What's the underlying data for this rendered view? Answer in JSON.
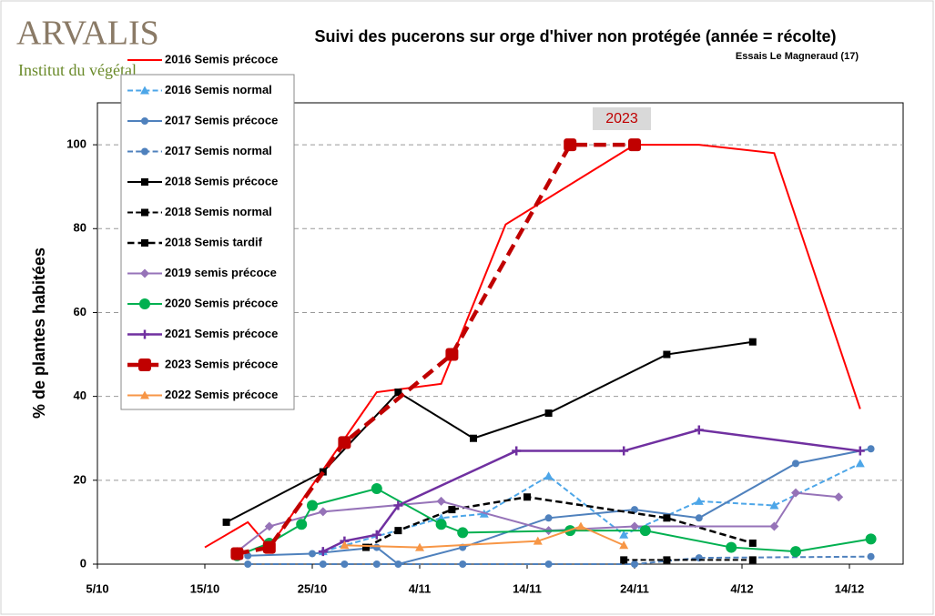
{
  "logo": {
    "name": "ARVALIS",
    "tagline": "Institut du végétal"
  },
  "chart_data": {
    "type": "line",
    "title": "Suivi des pucerons sur orge d'hiver non protégée (année = récolte)",
    "subtitle": "Essais Le Magneraud (17)",
    "y_label": "% de plantes habitées",
    "annotation": "2023",
    "xlim": [
      278,
      353
    ],
    "xticks": [
      {
        "value": 278,
        "label": "5/10"
      },
      {
        "value": 288,
        "label": "15/10"
      },
      {
        "value": 298,
        "label": "25/10"
      },
      {
        "value": 308,
        "label": "4/11"
      },
      {
        "value": 318,
        "label": "14/11"
      },
      {
        "value": 328,
        "label": "24/11"
      },
      {
        "value": 338,
        "label": "4/12"
      },
      {
        "value": 348,
        "label": "14/12"
      }
    ],
    "ylim": [
      0,
      110
    ],
    "yticks": [
      0,
      20,
      40,
      60,
      80,
      100
    ],
    "grid": true,
    "legend": "upper left",
    "series": [
      {
        "name": "2016 Semis précoce",
        "color": "#ff0000",
        "marker": "none",
        "dashed": false,
        "width": 2,
        "x": [
          288,
          292,
          294,
          304,
          310,
          316,
          328,
          334,
          341,
          349
        ],
        "values": [
          4,
          10,
          4,
          41,
          43,
          81,
          100,
          100,
          98,
          37
        ]
      },
      {
        "name": "2016 Semis normal",
        "color": "#4da6e8",
        "marker": "triangle",
        "dashed": true,
        "width": 2,
        "x": [
          299,
          310,
          314,
          320,
          327,
          334,
          341,
          349
        ],
        "values": [
          3,
          11,
          12,
          21,
          7,
          15,
          14,
          24
        ]
      },
      {
        "name": "2017 Semis précoce",
        "color": "#4f81bd",
        "marker": "circle",
        "dashed": false,
        "width": 2,
        "x": [
          292,
          298,
          304,
          306,
          312,
          320,
          328,
          334,
          343,
          350
        ],
        "values": [
          2,
          2.5,
          4,
          0,
          4,
          11,
          13,
          11,
          24,
          27.5
        ]
      },
      {
        "name": "2017 Semis normal",
        "color": "#4f81bd",
        "marker": "circle",
        "dashed": true,
        "width": 2,
        "x": [
          292,
          299,
          301,
          304,
          312,
          320,
          328,
          334,
          350
        ],
        "values": [
          0,
          0,
          0,
          0,
          0,
          0,
          0,
          1.5,
          1.8
        ]
      },
      {
        "name": "2018 Semis précoce",
        "color": "#000000",
        "marker": "square",
        "dashed": false,
        "width": 2,
        "x": [
          290,
          299,
          306,
          313,
          320,
          331,
          339
        ],
        "values": [
          10,
          22,
          41,
          30,
          36,
          50,
          53
        ]
      },
      {
        "name": "2018 Semis normal",
        "color": "#000000",
        "marker": "square",
        "dashed": true,
        "width": 2,
        "x": [
          327,
          331,
          339
        ],
        "values": [
          1,
          1,
          1
        ]
      },
      {
        "name": "2018 Semis tardif",
        "color": "#000000",
        "marker": "square",
        "dashed": true,
        "width": 2.5,
        "x": [
          303,
          306,
          311,
          318,
          331,
          339
        ],
        "values": [
          4,
          8,
          13,
          16,
          11,
          5
        ]
      },
      {
        "name": "2019 semis précoce",
        "color": "#9673b8",
        "marker": "diamond",
        "dashed": false,
        "width": 2,
        "x": [
          291,
          294,
          299,
          310,
          320,
          328,
          341,
          343,
          347
        ],
        "values": [
          3,
          9,
          12.5,
          15,
          8,
          9,
          9,
          17,
          16
        ]
      },
      {
        "name": "2020 Semis précoce",
        "color": "#00b050",
        "marker": "circle",
        "dashed": false,
        "width": 2,
        "x": [
          291,
          294,
          297,
          298,
          304,
          310,
          312,
          322,
          329,
          337,
          343,
          350
        ],
        "values": [
          2,
          5,
          9.5,
          14,
          18,
          9.5,
          7.5,
          8,
          8,
          4,
          3,
          6
        ]
      },
      {
        "name": "2021 Semis précoce",
        "color": "#7030a0",
        "marker": "plus",
        "dashed": false,
        "width": 2.5,
        "x": [
          299,
          301,
          304,
          306,
          317,
          327,
          334,
          349
        ],
        "values": [
          3,
          5.5,
          7,
          14,
          27,
          27,
          32,
          27
        ]
      },
      {
        "name": "2023 Semis précoce",
        "color": "#c00000",
        "marker": "bigsquare",
        "dashed": true,
        "width": 4.5,
        "x": [
          291,
          294,
          301,
          311,
          322,
          328
        ],
        "values": [
          2.5,
          4,
          29,
          50,
          100,
          100
        ]
      },
      {
        "name": "2022 Semis précoce",
        "color": "#f79646",
        "marker": "triangle",
        "dashed": false,
        "width": 2,
        "x": [
          301,
          308,
          319,
          323,
          327
        ],
        "values": [
          4.5,
          4,
          5.5,
          9,
          4.5
        ]
      }
    ]
  }
}
